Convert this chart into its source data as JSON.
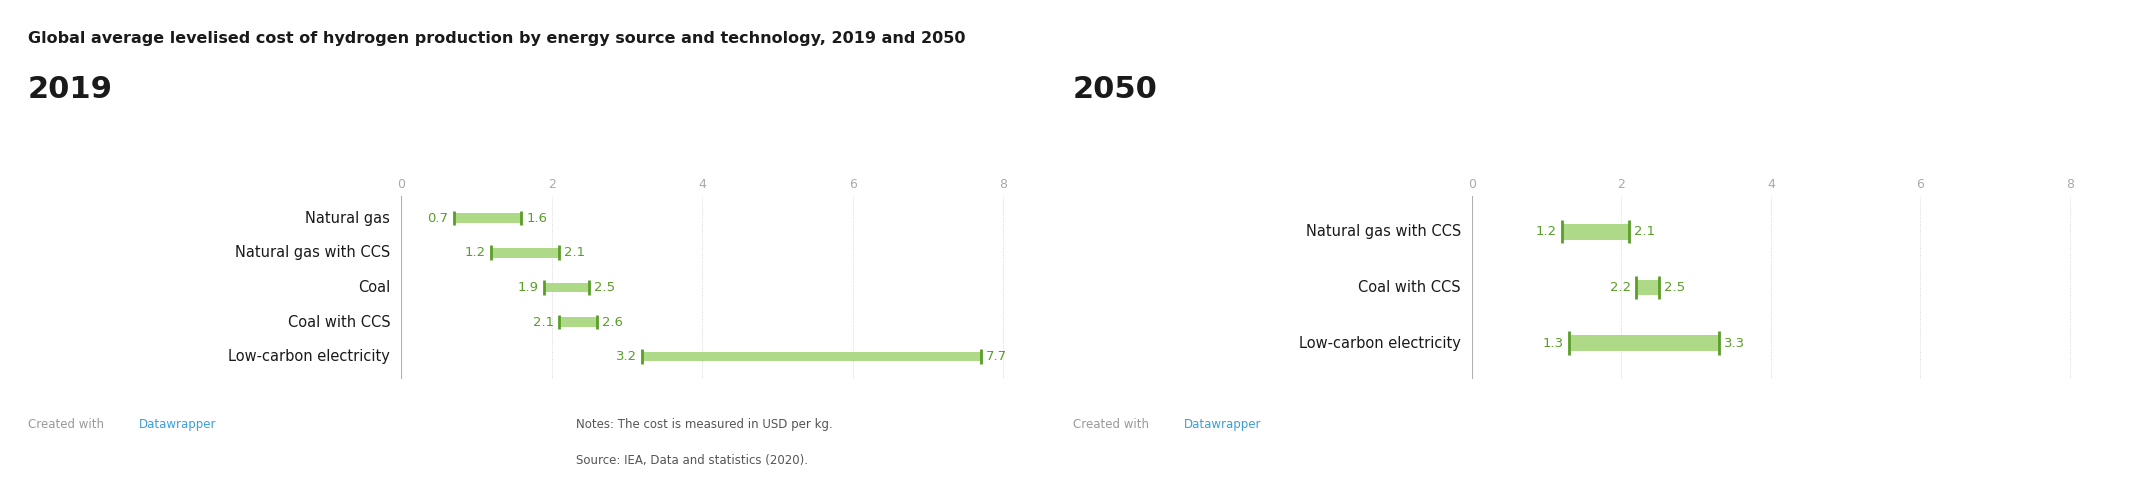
{
  "title": "Global average levelised cost of hydrogen production by energy source and technology, 2019 and 2050",
  "background_color": "#ffffff",
  "top_line_color": "#2d2d2d",
  "year2019": {
    "label": "2019",
    "categories": [
      "Natural gas",
      "Natural gas with CCS",
      "Coal",
      "Coal with CCS",
      "Low-carbon electricity"
    ],
    "bar_low": [
      0.7,
      1.2,
      1.9,
      2.1,
      3.2
    ],
    "bar_high": [
      1.6,
      2.1,
      2.5,
      2.6,
      7.7
    ],
    "xlim": [
      0,
      8.5
    ],
    "xticks": [
      0,
      2,
      4,
      6,
      8
    ]
  },
  "year2050": {
    "label": "2050",
    "categories": [
      "Natural gas with CCS",
      "Coal with CCS",
      "Low-carbon electricity"
    ],
    "bar_low": [
      1.2,
      2.2,
      1.3
    ],
    "bar_high": [
      2.1,
      2.5,
      3.3
    ],
    "xlim": [
      0,
      8.5
    ],
    "xticks": [
      0,
      2,
      4,
      6,
      8
    ]
  },
  "bar_fill_color": "#aed987",
  "bar_edge_color": "#5a9e28",
  "bar_height": 0.28,
  "label_color": "#1a1a1a",
  "tick_color": "#aaaaaa",
  "grid_color": "#cccccc",
  "value_color": "#5a9e28",
  "year_label_fontsize": 22,
  "category_fontsize": 10.5,
  "value_fontsize": 9.5,
  "title_fontsize": 11.5,
  "note_text_line1": "Notes: The cost is measured in USD per kg.",
  "note_text_line2": "Source: IEA, Data and statistics (2020).",
  "created_text": "Created with ",
  "datawrapper_text": "Datawrapper",
  "datawrapper_color": "#3a9fd5",
  "note_color": "#555555",
  "created_color": "#999999"
}
